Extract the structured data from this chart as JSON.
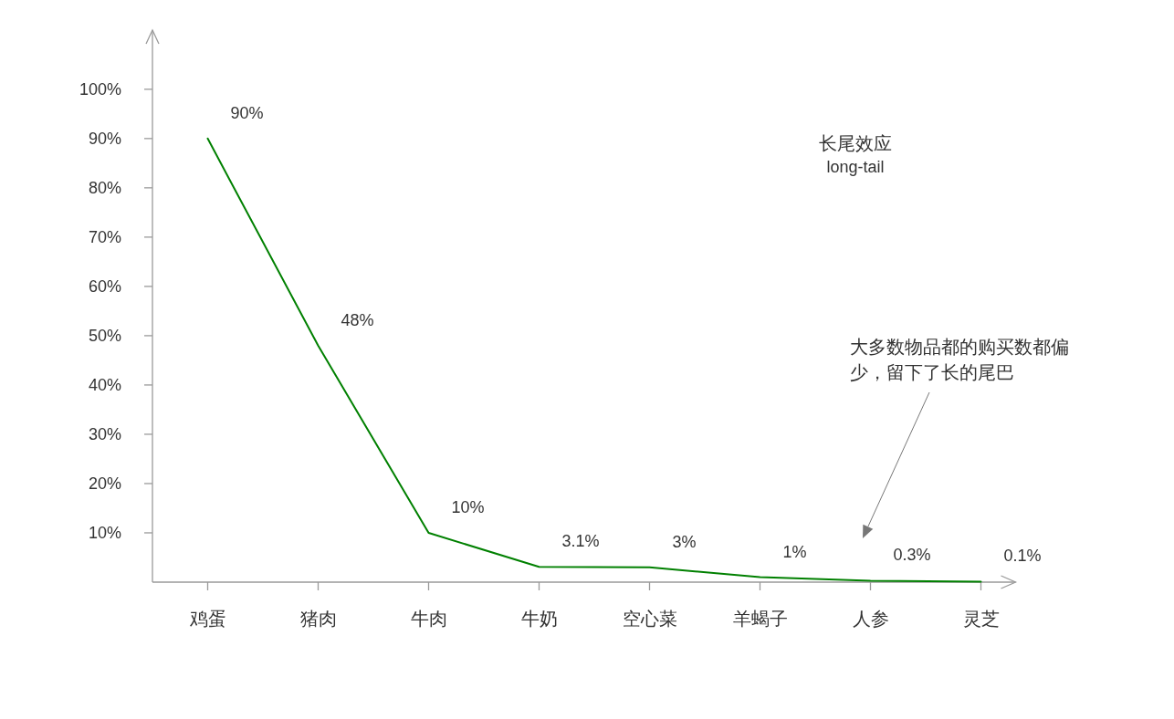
{
  "chart_data": {
    "type": "line",
    "title": "长尾效应",
    "subtitle": "long-tail",
    "categories": [
      "鸡蛋",
      "猪肉",
      "牛肉",
      "牛奶",
      "空心菜",
      "羊蝎子",
      "人参",
      "灵芝"
    ],
    "values": [
      90,
      48,
      10,
      3.1,
      3,
      1,
      0.3,
      0.1
    ],
    "value_labels": [
      "90%",
      "48%",
      "10%",
      "3.1%",
      "3%",
      "1%",
      "0.3%",
      "0.1%"
    ],
    "color": "#008000",
    "line_style": "solid",
    "ylim": [
      0,
      112
    ],
    "yticks": [
      {
        "value": 10,
        "label": "10%"
      },
      {
        "value": 20,
        "label": "20%"
      },
      {
        "value": 30,
        "label": "30%"
      },
      {
        "value": 40,
        "label": "40%"
      },
      {
        "value": 50,
        "label": "50%"
      },
      {
        "value": 60,
        "label": "60%"
      },
      {
        "value": 70,
        "label": "70%"
      },
      {
        "value": 80,
        "label": "80%"
      },
      {
        "value": 90,
        "label": "90%"
      },
      {
        "value": 100,
        "label": "100%"
      }
    ],
    "annotations": [
      "大多数物品都的购买数都偏少，留下了长的尾巴"
    ]
  }
}
